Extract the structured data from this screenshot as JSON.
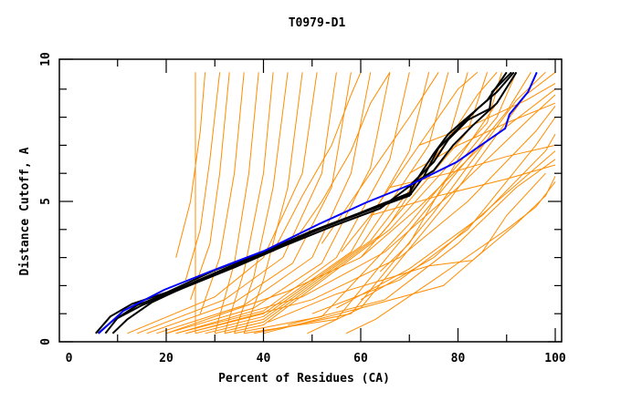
{
  "chart_data": {
    "type": "line",
    "title": "T0979-D1",
    "xlabel": "Percent of Residues (CA)",
    "ylabel": "Distance Cutoff, A",
    "xlim": [
      0,
      100
    ],
    "ylim": [
      0,
      10
    ],
    "x_ticks": [
      0,
      20,
      40,
      60,
      80,
      100
    ],
    "x_tick_labels": [
      "0",
      "20",
      "40",
      "60",
      "80",
      "100"
    ],
    "x_minor_ticks": [
      10,
      30,
      50,
      70,
      90
    ],
    "y_ticks": [
      0,
      5,
      10
    ],
    "y_tick_labels": [
      "0",
      "5",
      "10"
    ],
    "y_minor_ticks": [
      1,
      2,
      3,
      4,
      6,
      7,
      8,
      9
    ],
    "grid": false,
    "legend": "none",
    "colors": {
      "other_models": "#ff8c00",
      "highlight_blue": "#0000ff",
      "highlight_black": "#000000"
    },
    "series": [
      {
        "name": "blue-model",
        "color": "#0000ff",
        "points": [
          [
            6.1,
            0.3
          ],
          [
            11.2,
            1.1
          ],
          [
            19.6,
            1.85
          ],
          [
            29,
            2.5
          ],
          [
            40.3,
            3.25
          ],
          [
            51.5,
            4.2
          ],
          [
            61,
            4.95
          ],
          [
            70.3,
            5.6
          ],
          [
            79.7,
            6.4
          ],
          [
            89.7,
            7.6
          ],
          [
            90.6,
            8.1
          ],
          [
            94.4,
            8.9
          ],
          [
            96.2,
            9.6
          ]
        ]
      },
      {
        "name": "black-model-1",
        "color": "#000000",
        "points": [
          [
            5.5,
            0.3
          ],
          [
            8.5,
            0.9
          ],
          [
            13,
            1.35
          ],
          [
            20,
            1.75
          ],
          [
            30,
            2.55
          ],
          [
            40,
            3.2
          ],
          [
            50,
            3.95
          ],
          [
            60,
            4.6
          ],
          [
            70,
            5.3
          ],
          [
            72,
            5.9
          ],
          [
            75,
            6.7
          ],
          [
            78,
            7.4
          ],
          [
            82,
            8.0
          ],
          [
            86,
            8.6
          ],
          [
            90,
            9.6
          ]
        ]
      },
      {
        "name": "black-model-2",
        "color": "#000000",
        "points": [
          [
            7.5,
            0.3
          ],
          [
            10,
            0.85
          ],
          [
            14,
            1.3
          ],
          [
            22,
            1.85
          ],
          [
            32,
            2.6
          ],
          [
            42,
            3.3
          ],
          [
            52,
            4.05
          ],
          [
            62,
            4.7
          ],
          [
            70,
            5.2
          ],
          [
            73,
            5.9
          ],
          [
            76,
            6.9
          ],
          [
            80,
            7.6
          ],
          [
            84,
            8.3
          ],
          [
            88,
            8.9
          ],
          [
            91.5,
            9.6
          ]
        ]
      },
      {
        "name": "black-model-3",
        "color": "#000000",
        "points": [
          [
            9,
            0.3
          ],
          [
            12,
            0.8
          ],
          [
            17,
            1.4
          ],
          [
            25,
            2.05
          ],
          [
            35,
            2.75
          ],
          [
            45,
            3.55
          ],
          [
            55,
            4.25
          ],
          [
            65,
            4.95
          ],
          [
            70.3,
            5.25
          ],
          [
            70.3,
            5.6
          ],
          [
            75,
            6.4
          ],
          [
            78,
            7.2
          ],
          [
            82,
            7.9
          ],
          [
            86.5,
            8.3
          ],
          [
            87,
            8.9
          ],
          [
            91,
            9.6
          ]
        ]
      },
      {
        "name": "black-model-4",
        "color": "#000000",
        "points": [
          [
            6,
            0.3
          ],
          [
            9,
            0.75
          ],
          [
            15,
            1.3
          ],
          [
            24,
            1.95
          ],
          [
            34,
            2.65
          ],
          [
            44,
            3.4
          ],
          [
            54,
            4.1
          ],
          [
            64,
            4.75
          ],
          [
            70.5,
            5.6
          ],
          [
            75,
            6.1
          ],
          [
            79,
            7.0
          ],
          [
            83,
            7.7
          ],
          [
            88,
            8.5
          ],
          [
            92,
            9.6
          ]
        ]
      }
    ],
    "other_models": [
      [
        [
          26,
          0.3
        ],
        [
          26,
          9.6
        ]
      ],
      [
        [
          22,
          3.0
        ],
        [
          25,
          5.0
        ],
        [
          27,
          7.5
        ],
        [
          28,
          9.6
        ]
      ],
      [
        [
          24,
          2.2
        ],
        [
          27,
          4.0
        ],
        [
          29,
          6.5
        ],
        [
          31,
          9.6
        ]
      ],
      [
        [
          25,
          1.5
        ],
        [
          29,
          3.5
        ],
        [
          31,
          6.0
        ],
        [
          33,
          9.6
        ]
      ],
      [
        [
          27,
          1.0
        ],
        [
          31,
          3.0
        ],
        [
          34,
          6.0
        ],
        [
          36,
          9.6
        ]
      ],
      [
        [
          30,
          0.3
        ],
        [
          34,
          2.8
        ],
        [
          37,
          6.0
        ],
        [
          39,
          9.6
        ]
      ],
      [
        [
          32,
          0.3
        ],
        [
          36,
          2.5
        ],
        [
          40,
          6.0
        ],
        [
          42,
          9.6
        ]
      ],
      [
        [
          34,
          0.3
        ],
        [
          38,
          2.3
        ],
        [
          42,
          5.5
        ],
        [
          45,
          9.6
        ]
      ],
      [
        [
          36,
          0.3
        ],
        [
          40,
          2.2
        ],
        [
          45,
          5.5
        ],
        [
          48,
          9.6
        ]
      ],
      [
        [
          12,
          0.3
        ],
        [
          30,
          1.6
        ],
        [
          40,
          3.0
        ],
        [
          48,
          6.0
        ],
        [
          51,
          9.6
        ]
      ],
      [
        [
          14,
          0.3
        ],
        [
          32,
          1.5
        ],
        [
          44,
          3.0
        ],
        [
          52,
          6.0
        ],
        [
          55,
          9.6
        ]
      ],
      [
        [
          16,
          0.3
        ],
        [
          34,
          1.4
        ],
        [
          46,
          2.8
        ],
        [
          54,
          5.5
        ],
        [
          58,
          9.6
        ]
      ],
      [
        [
          18,
          0.3
        ],
        [
          36,
          1.3
        ],
        [
          50,
          3.0
        ],
        [
          58,
          6.0
        ],
        [
          62,
          9.6
        ]
      ],
      [
        [
          20,
          0.3
        ],
        [
          38,
          1.2
        ],
        [
          52,
          2.8
        ],
        [
          62,
          6.2
        ],
        [
          66,
          9.6
        ]
      ],
      [
        [
          22,
          0.3
        ],
        [
          40,
          1.1
        ],
        [
          55,
          3.0
        ],
        [
          66,
          6.5
        ],
        [
          70,
          9.6
        ]
      ],
      [
        [
          24,
          0.3
        ],
        [
          40,
          1.0
        ],
        [
          58,
          3.2
        ],
        [
          70,
          6.8
        ],
        [
          74,
          9.6
        ]
      ],
      [
        [
          26,
          0.3
        ],
        [
          40,
          0.9
        ],
        [
          60,
          3.4
        ],
        [
          74,
          7.0
        ],
        [
          78,
          9.6
        ]
      ],
      [
        [
          28,
          0.3
        ],
        [
          40,
          0.8
        ],
        [
          62,
          3.6
        ],
        [
          78,
          7.2
        ],
        [
          82,
          9.6
        ]
      ],
      [
        [
          30,
          0.3
        ],
        [
          40,
          0.7
        ],
        [
          64,
          3.8
        ],
        [
          82,
          7.5
        ],
        [
          86,
          9.6
        ]
      ],
      [
        [
          32,
          0.3
        ],
        [
          40,
          0.6
        ],
        [
          66,
          4.0
        ],
        [
          86,
          7.8
        ],
        [
          89,
          9.6
        ]
      ],
      [
        [
          34,
          0.3
        ],
        [
          52,
          0.9
        ],
        [
          70,
          4.2
        ],
        [
          88,
          8.0
        ],
        [
          92,
          9.6
        ]
      ],
      [
        [
          36,
          0.3
        ],
        [
          55,
          0.8
        ],
        [
          72,
          4.4
        ],
        [
          90,
          8.2
        ],
        [
          95,
          9.6
        ]
      ],
      [
        [
          38,
          0.3
        ],
        [
          58,
          1.0
        ],
        [
          75,
          4.6
        ],
        [
          92,
          8.6
        ],
        [
          98,
          9.6
        ]
      ],
      [
        [
          40,
          0.3
        ],
        [
          60,
          1.2
        ],
        [
          78,
          5.0
        ],
        [
          94,
          8.8
        ],
        [
          100,
          9.6
        ]
      ],
      [
        [
          20,
          0.3
        ],
        [
          45,
          1.8
        ],
        [
          60,
          3.0
        ],
        [
          72,
          4.8
        ],
        [
          85,
          7.0
        ],
        [
          100,
          9.0
        ]
      ],
      [
        [
          22,
          0.3
        ],
        [
          48,
          1.6
        ],
        [
          65,
          3.2
        ],
        [
          80,
          5.5
        ],
        [
          95,
          8.0
        ],
        [
          100,
          8.8
        ]
      ],
      [
        [
          24,
          0.3
        ],
        [
          50,
          1.5
        ],
        [
          68,
          3.0
        ],
        [
          82,
          5.0
        ],
        [
          96,
          7.5
        ],
        [
          100,
          8.4
        ]
      ],
      [
        [
          50,
          1.0
        ],
        [
          68,
          2.2
        ],
        [
          82,
          4.0
        ],
        [
          96,
          7.0
        ],
        [
          100,
          8.0
        ]
      ],
      [
        [
          55,
          1.2
        ],
        [
          70,
          2.6
        ],
        [
          85,
          4.5
        ],
        [
          98,
          6.8
        ],
        [
          100,
          7.4
        ]
      ],
      [
        [
          60,
          1.5
        ],
        [
          75,
          3.0
        ],
        [
          88,
          5.0
        ],
        [
          100,
          6.8
        ]
      ],
      [
        [
          45,
          0.6
        ],
        [
          65,
          1.5
        ],
        [
          80,
          3.5
        ],
        [
          92,
          5.5
        ],
        [
          100,
          6.5
        ]
      ],
      [
        [
          57,
          0.3
        ],
        [
          63,
          0.8
        ],
        [
          75,
          2.2
        ],
        [
          90,
          4.0
        ],
        [
          96,
          4.8
        ],
        [
          100,
          5.7
        ]
      ],
      [
        [
          41,
          0.7
        ],
        [
          55,
          1.7
        ],
        [
          74,
          2.7
        ],
        [
          83,
          2.9
        ],
        [
          92,
          4.2
        ],
        [
          98,
          5.2
        ],
        [
          100,
          5.9
        ]
      ],
      [
        [
          49,
          0.3
        ],
        [
          60,
          1.2
        ],
        [
          77,
          2.0
        ],
        [
          85,
          3.2
        ],
        [
          90,
          4.5
        ],
        [
          98,
          6.0
        ]
      ],
      [
        [
          64,
          2.5
        ],
        [
          70,
          3.5
        ],
        [
          75,
          5.0
        ],
        [
          80,
          6.5
        ],
        [
          88,
          8.5
        ],
        [
          92,
          9.6
        ]
      ],
      [
        [
          60,
          3.0
        ],
        [
          66,
          4.2
        ],
        [
          72,
          5.8
        ],
        [
          78,
          7.2
        ],
        [
          84,
          8.8
        ],
        [
          88,
          9.6
        ]
      ],
      [
        [
          56,
          3.2
        ],
        [
          62,
          4.5
        ],
        [
          68,
          6.0
        ],
        [
          74,
          7.5
        ],
        [
          80,
          9.0
        ],
        [
          84,
          9.6
        ]
      ],
      [
        [
          52,
          3.5
        ],
        [
          58,
          5.0
        ],
        [
          64,
          6.5
        ],
        [
          70,
          8.0
        ],
        [
          76,
          9.6
        ]
      ],
      [
        [
          46,
          3.5
        ],
        [
          52,
          5.0
        ],
        [
          58,
          6.8
        ],
        [
          62,
          8.5
        ],
        [
          66,
          9.6
        ]
      ],
      [
        [
          42,
          3.2
        ],
        [
          48,
          5.2
        ],
        [
          54,
          7.0
        ],
        [
          58,
          8.8
        ],
        [
          60,
          9.6
        ]
      ],
      [
        [
          66,
          5.5
        ],
        [
          78,
          6.0
        ],
        [
          90,
          6.6
        ],
        [
          100,
          7.0
        ]
      ],
      [
        [
          62,
          4.5
        ],
        [
          76,
          5.2
        ],
        [
          90,
          5.8
        ],
        [
          100,
          6.3
        ]
      ],
      [
        [
          70,
          6.0
        ],
        [
          80,
          7.0
        ],
        [
          90,
          7.8
        ],
        [
          100,
          8.5
        ]
      ],
      [
        [
          72,
          7.0
        ],
        [
          84,
          7.8
        ],
        [
          94,
          8.6
        ],
        [
          100,
          9.2
        ]
      ]
    ]
  }
}
